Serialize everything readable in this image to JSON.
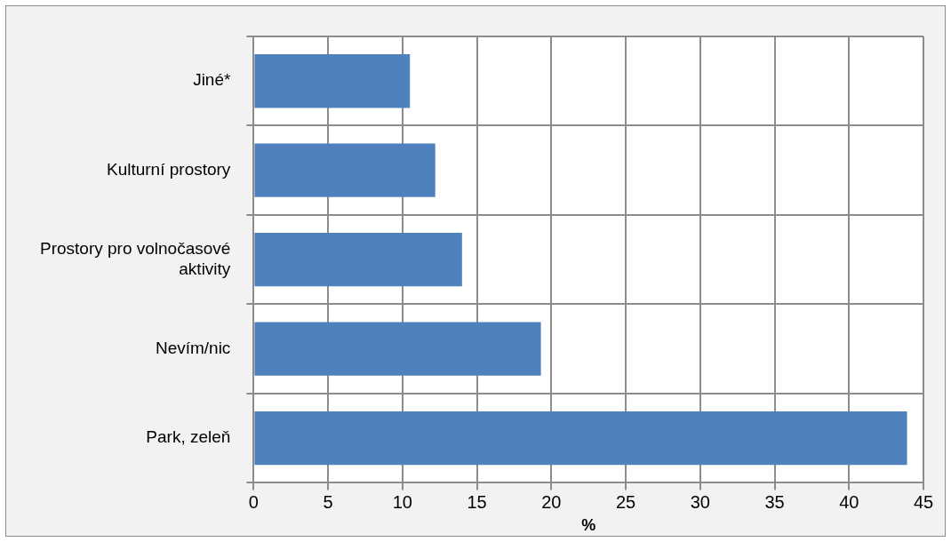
{
  "chart_data": {
    "type": "bar",
    "orientation": "horizontal",
    "categories": [
      "Jiné*",
      "Kulturní prostory",
      "Prostory pro volnočasové aktivity",
      "Nevím/nic",
      "Park, zeleň"
    ],
    "values": [
      10.5,
      12.2,
      14.0,
      19.3,
      43.9
    ],
    "color": "#4f81bd",
    "xlabel": "%",
    "xlim": [
      0,
      45
    ],
    "xticks": [
      0,
      5,
      10,
      15,
      20,
      25,
      30,
      35,
      40,
      45
    ],
    "grid": true
  }
}
